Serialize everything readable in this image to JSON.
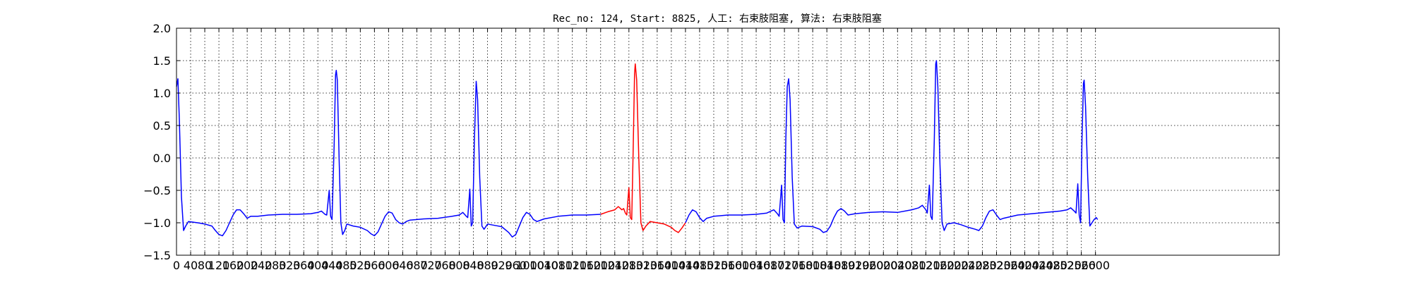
{
  "chart_data": {
    "type": "line",
    "title": "Rec_no: 124, Start: 8825, 人工: 右束肢阻塞, 算法: 右束肢阻塞",
    "xlabel": "",
    "ylabel": "",
    "xlim": [
      0,
      3120
    ],
    "ylim": [
      -1.5,
      2.0
    ],
    "grid": true,
    "x_ticks": [
      0,
      40,
      80,
      120,
      160,
      200,
      240,
      280,
      320,
      360,
      400,
      440,
      480,
      520,
      560,
      600,
      640,
      680,
      720,
      760,
      800,
      840,
      880,
      920,
      960,
      1000,
      1040,
      1080,
      1120,
      1160,
      1200,
      1240,
      1280,
      1320,
      1360,
      1400,
      1440,
      1480,
      1520,
      1560,
      1600,
      1640,
      1680,
      1720,
      1760,
      1800,
      1840,
      1880,
      1920,
      1960,
      2000,
      2040,
      2080,
      2120,
      2160,
      2200,
      2240,
      2280,
      2320,
      2360,
      2400,
      2440,
      2480,
      2520,
      2560,
      2600
    ],
    "y_ticks": [
      -1.5,
      -1.0,
      -0.5,
      0.0,
      0.5,
      1.0,
      1.5,
      2.0
    ],
    "y_tick_labels": [
      "−1.5",
      "−1.0",
      "−0.5",
      "0.0",
      "0.5",
      "1.0",
      "1.5",
      "2.0"
    ],
    "series": [
      {
        "color": "#0000ff",
        "points": [
          [
            0,
            1.1
          ],
          [
            4,
            1.22
          ],
          [
            8,
            0.6
          ],
          [
            14,
            -0.6
          ],
          [
            20,
            -1.12
          ],
          [
            26,
            -1.05
          ],
          [
            34,
            -0.98
          ],
          [
            60,
            -1.0
          ],
          [
            80,
            -1.02
          ],
          [
            100,
            -1.05
          ],
          [
            110,
            -1.12
          ],
          [
            120,
            -1.18
          ],
          [
            130,
            -1.2
          ],
          [
            140,
            -1.12
          ],
          [
            150,
            -1.0
          ],
          [
            160,
            -0.88
          ],
          [
            170,
            -0.8
          ],
          [
            180,
            -0.8
          ],
          [
            190,
            -0.86
          ],
          [
            200,
            -0.93
          ],
          [
            210,
            -0.9
          ],
          [
            230,
            -0.9
          ],
          [
            260,
            -0.88
          ],
          [
            300,
            -0.87
          ],
          [
            340,
            -0.87
          ],
          [
            380,
            -0.86
          ],
          [
            400,
            -0.84
          ],
          [
            410,
            -0.82
          ],
          [
            420,
            -0.87
          ],
          [
            425,
            -0.88
          ],
          [
            432,
            -0.5
          ],
          [
            436,
            -0.9
          ],
          [
            440,
            -0.95
          ],
          [
            446,
            0.2
          ],
          [
            450,
            1.28
          ],
          [
            452,
            1.35
          ],
          [
            455,
            1.2
          ],
          [
            460,
            0.0
          ],
          [
            465,
            -1.0
          ],
          [
            470,
            -1.18
          ],
          [
            476,
            -1.12
          ],
          [
            482,
            -1.02
          ],
          [
            500,
            -1.05
          ],
          [
            520,
            -1.07
          ],
          [
            540,
            -1.12
          ],
          [
            550,
            -1.17
          ],
          [
            560,
            -1.2
          ],
          [
            570,
            -1.14
          ],
          [
            580,
            -1.02
          ],
          [
            590,
            -0.9
          ],
          [
            600,
            -0.83
          ],
          [
            610,
            -0.85
          ],
          [
            620,
            -0.95
          ],
          [
            630,
            -1.0
          ],
          [
            640,
            -1.02
          ],
          [
            650,
            -0.98
          ],
          [
            660,
            -0.96
          ],
          [
            700,
            -0.94
          ],
          [
            740,
            -0.93
          ],
          [
            780,
            -0.9
          ],
          [
            800,
            -0.88
          ],
          [
            810,
            -0.84
          ],
          [
            820,
            -0.9
          ],
          [
            824,
            -0.92
          ],
          [
            830,
            -0.48
          ],
          [
            834,
            -1.05
          ],
          [
            838,
            -1.0
          ],
          [
            843,
            0.3
          ],
          [
            848,
            1.18
          ],
          [
            852,
            0.9
          ],
          [
            858,
            -0.3
          ],
          [
            864,
            -1.05
          ],
          [
            870,
            -1.1
          ],
          [
            880,
            -1.02
          ],
          [
            900,
            -1.04
          ],
          [
            920,
            -1.06
          ],
          [
            940,
            -1.15
          ],
          [
            950,
            -1.22
          ],
          [
            960,
            -1.18
          ],
          [
            970,
            -1.05
          ],
          [
            980,
            -0.92
          ],
          [
            990,
            -0.84
          ],
          [
            1000,
            -0.87
          ],
          [
            1010,
            -0.95
          ],
          [
            1020,
            -0.98
          ],
          [
            1040,
            -0.94
          ],
          [
            1080,
            -0.9
          ],
          [
            1120,
            -0.88
          ],
          [
            1160,
            -0.88
          ],
          [
            1200,
            -0.87
          ]
        ]
      },
      {
        "color": "#ff0000",
        "points": [
          [
            1200,
            -0.87
          ],
          [
            1220,
            -0.83
          ],
          [
            1240,
            -0.8
          ],
          [
            1250,
            -0.75
          ],
          [
            1260,
            -0.8
          ],
          [
            1265,
            -0.78
          ],
          [
            1270,
            -0.85
          ],
          [
            1274,
            -0.88
          ],
          [
            1280,
            -0.46
          ],
          [
            1284,
            -0.92
          ],
          [
            1288,
            -0.95
          ],
          [
            1292,
            0.1
          ],
          [
            1296,
            1.3
          ],
          [
            1298,
            1.45
          ],
          [
            1302,
            1.2
          ],
          [
            1308,
            0.0
          ],
          [
            1314,
            -1.0
          ],
          [
            1320,
            -1.12
          ],
          [
            1328,
            -1.05
          ],
          [
            1340,
            -0.98
          ],
          [
            1360,
            -1.0
          ],
          [
            1380,
            -1.02
          ],
          [
            1400,
            -1.07
          ],
          [
            1410,
            -1.12
          ],
          [
            1420,
            -1.15
          ],
          [
            1430,
            -1.08
          ],
          [
            1440,
            -1.0
          ]
        ]
      },
      {
        "color": "#0000ff",
        "points": [
          [
            1440,
            -1.0
          ],
          [
            1450,
            -0.88
          ],
          [
            1460,
            -0.8
          ],
          [
            1470,
            -0.83
          ],
          [
            1480,
            -0.92
          ],
          [
            1490,
            -0.98
          ],
          [
            1500,
            -0.93
          ],
          [
            1520,
            -0.9
          ],
          [
            1560,
            -0.88
          ],
          [
            1600,
            -0.88
          ],
          [
            1640,
            -0.87
          ],
          [
            1670,
            -0.85
          ],
          [
            1690,
            -0.8
          ],
          [
            1700,
            -0.86
          ],
          [
            1705,
            -0.9
          ],
          [
            1712,
            -0.42
          ],
          [
            1716,
            -0.95
          ],
          [
            1720,
            -1.0
          ],
          [
            1724,
            0.3
          ],
          [
            1728,
            1.1
          ],
          [
            1732,
            1.22
          ],
          [
            1736,
            0.9
          ],
          [
            1742,
            -0.3
          ],
          [
            1748,
            -1.02
          ],
          [
            1756,
            -1.08
          ],
          [
            1770,
            -1.05
          ],
          [
            1800,
            -1.06
          ],
          [
            1820,
            -1.1
          ],
          [
            1830,
            -1.15
          ],
          [
            1840,
            -1.13
          ],
          [
            1850,
            -1.05
          ],
          [
            1860,
            -0.92
          ],
          [
            1870,
            -0.82
          ],
          [
            1880,
            -0.78
          ],
          [
            1890,
            -0.82
          ],
          [
            1900,
            -0.88
          ],
          [
            1920,
            -0.86
          ],
          [
            1960,
            -0.84
          ],
          [
            2000,
            -0.83
          ],
          [
            2040,
            -0.84
          ],
          [
            2080,
            -0.8
          ],
          [
            2100,
            -0.77
          ],
          [
            2110,
            -0.73
          ],
          [
            2120,
            -0.8
          ],
          [
            2124,
            -0.85
          ],
          [
            2130,
            -0.42
          ],
          [
            2134,
            -0.9
          ],
          [
            2138,
            -0.95
          ],
          [
            2144,
            0.3
          ],
          [
            2148,
            1.45
          ],
          [
            2150,
            1.5
          ],
          [
            2154,
            1.1
          ],
          [
            2160,
            -0.1
          ],
          [
            2166,
            -1.0
          ],
          [
            2172,
            -1.12
          ],
          [
            2180,
            -1.02
          ],
          [
            2200,
            -1.0
          ],
          [
            2220,
            -1.03
          ],
          [
            2240,
            -1.07
          ],
          [
            2260,
            -1.1
          ],
          [
            2270,
            -1.12
          ],
          [
            2280,
            -1.05
          ],
          [
            2290,
            -0.92
          ],
          [
            2300,
            -0.82
          ],
          [
            2310,
            -0.8
          ],
          [
            2320,
            -0.88
          ],
          [
            2330,
            -0.95
          ],
          [
            2340,
            -0.93
          ],
          [
            2380,
            -0.88
          ],
          [
            2420,
            -0.86
          ],
          [
            2460,
            -0.84
          ],
          [
            2500,
            -0.82
          ],
          [
            2520,
            -0.8
          ],
          [
            2530,
            -0.77
          ],
          [
            2540,
            -0.82
          ],
          [
            2545,
            -0.85
          ],
          [
            2550,
            -0.4
          ],
          [
            2554,
            -0.88
          ],
          [
            2558,
            -1.0
          ],
          [
            2562,
            0.3
          ],
          [
            2566,
            1.15
          ],
          [
            2568,
            1.2
          ],
          [
            2572,
            0.8
          ],
          [
            2578,
            -0.3
          ],
          [
            2584,
            -1.05
          ],
          [
            2590,
            -1.0
          ],
          [
            2596,
            -0.95
          ],
          [
            2602,
            -0.92
          ],
          [
            2606,
            -0.95
          ]
        ]
      }
    ]
  }
}
